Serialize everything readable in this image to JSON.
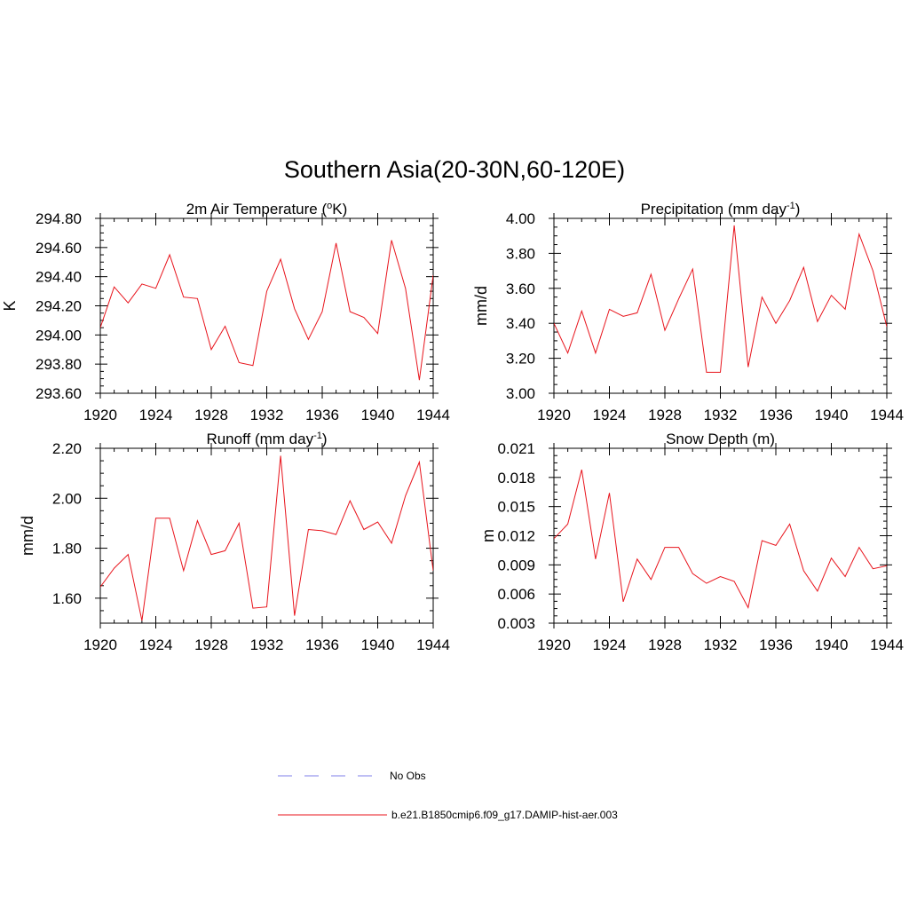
{
  "figure_title": "Southern Asia(20-30N,60-120E)",
  "colors": {
    "model_line": "#e8141c",
    "obs_line": "#9999ee",
    "axis": "#000000"
  },
  "legend": {
    "items": [
      {
        "label": "No Obs",
        "style": "dashed",
        "color": "#9999ee"
      },
      {
        "label": "b.e21.B1850cmip6.f09_g17.DAMIP-hist-aer.003",
        "style": "solid",
        "color": "#e8141c"
      }
    ]
  },
  "chart_data": [
    {
      "type": "line",
      "title": "2m Air Temperature (",
      "title_super": "o",
      "title_suffix": "K)",
      "xlabel": "",
      "ylabel": "K",
      "xlim": [
        1920,
        1944
      ],
      "ylim": [
        293.6,
        294.8
      ],
      "xticks": [
        1920,
        1924,
        1928,
        1932,
        1936,
        1940,
        1944
      ],
      "yticks": [
        "293.60",
        "293.80",
        "294.00",
        "294.20",
        "294.40",
        "294.60",
        "294.80"
      ],
      "ytick_values": [
        293.6,
        293.8,
        294.0,
        294.2,
        294.4,
        294.6,
        294.8
      ],
      "x": [
        1920,
        1921,
        1922,
        1923,
        1924,
        1925,
        1926,
        1927,
        1928,
        1929,
        1930,
        1931,
        1932,
        1933,
        1934,
        1935,
        1936,
        1937,
        1938,
        1939,
        1940,
        1941,
        1942,
        1943,
        1944
      ],
      "series": [
        {
          "values": [
            294.05,
            294.33,
            294.22,
            294.35,
            294.32,
            294.55,
            294.26,
            294.25,
            293.9,
            294.06,
            293.81,
            293.79,
            294.3,
            294.52,
            294.18,
            293.97,
            294.16,
            294.63,
            294.16,
            294.12,
            294.01,
            294.65,
            294.32,
            293.69,
            294.41
          ]
        }
      ]
    },
    {
      "type": "line",
      "title": "Precipitation (mm day",
      "title_super": "-1",
      "title_suffix": ")",
      "xlabel": "",
      "ylabel": "mm/d",
      "xlim": [
        1920,
        1944
      ],
      "ylim": [
        3.0,
        4.0
      ],
      "xticks": [
        1920,
        1924,
        1928,
        1932,
        1936,
        1940,
        1944
      ],
      "yticks": [
        "3.00",
        "3.20",
        "3.40",
        "3.60",
        "3.80",
        "4.00"
      ],
      "ytick_values": [
        3.0,
        3.2,
        3.4,
        3.6,
        3.8,
        4.0
      ],
      "x": [
        1920,
        1921,
        1922,
        1923,
        1924,
        1925,
        1926,
        1927,
        1928,
        1929,
        1930,
        1931,
        1932,
        1933,
        1934,
        1935,
        1936,
        1937,
        1938,
        1939,
        1940,
        1941,
        1942,
        1943,
        1944
      ],
      "series": [
        {
          "values": [
            3.4,
            3.23,
            3.47,
            3.23,
            3.48,
            3.44,
            3.46,
            3.68,
            3.36,
            3.54,
            3.71,
            3.12,
            3.12,
            3.96,
            3.15,
            3.55,
            3.4,
            3.53,
            3.72,
            3.41,
            3.56,
            3.48,
            3.91,
            3.7,
            3.38
          ]
        }
      ]
    },
    {
      "type": "line",
      "title": "Runoff (mm day",
      "title_super": "-1",
      "title_suffix": ")",
      "xlabel": "",
      "ylabel": "mm/d",
      "xlim": [
        1920,
        1944
      ],
      "ylim": [
        1.5,
        2.2
      ],
      "xticks": [
        1920,
        1924,
        1928,
        1932,
        1936,
        1940,
        1944
      ],
      "yticks": [
        "1.60",
        "1.80",
        "2.00",
        "2.20"
      ],
      "ytick_values": [
        1.6,
        1.8,
        2.0,
        2.2
      ],
      "x": [
        1920,
        1921,
        1922,
        1923,
        1924,
        1925,
        1926,
        1927,
        1928,
        1929,
        1930,
        1931,
        1932,
        1933,
        1934,
        1935,
        1936,
        1937,
        1938,
        1939,
        1940,
        1941,
        1942,
        1943,
        1944
      ],
      "series": [
        {
          "values": [
            1.645,
            1.72,
            1.775,
            1.51,
            1.92,
            1.92,
            1.71,
            1.91,
            1.775,
            1.79,
            1.9,
            1.56,
            1.565,
            2.17,
            1.53,
            1.875,
            1.87,
            1.855,
            1.99,
            1.875,
            1.905,
            1.82,
            2.01,
            2.145,
            1.71
          ]
        }
      ]
    },
    {
      "type": "line",
      "title": "Snow Depth (m)",
      "title_super": "",
      "title_suffix": "",
      "xlabel": "",
      "ylabel": "m",
      "xlim": [
        1920,
        1944
      ],
      "ylim": [
        0.003,
        0.021
      ],
      "xticks": [
        1920,
        1924,
        1928,
        1932,
        1936,
        1940,
        1944
      ],
      "yticks": [
        "0.003",
        "0.006",
        "0.009",
        "0.012",
        "0.015",
        "0.018",
        "0.021"
      ],
      "ytick_values": [
        0.003,
        0.006,
        0.009,
        0.012,
        0.015,
        0.018,
        0.021
      ],
      "x": [
        1920,
        1921,
        1922,
        1923,
        1924,
        1925,
        1926,
        1927,
        1928,
        1929,
        1930,
        1931,
        1932,
        1933,
        1934,
        1935,
        1936,
        1937,
        1938,
        1939,
        1940,
        1941,
        1942,
        1943,
        1944
      ],
      "series": [
        {
          "values": [
            0.0117,
            0.0132,
            0.0188,
            0.0096,
            0.0164,
            0.0052,
            0.0096,
            0.0075,
            0.0108,
            0.0108,
            0.0081,
            0.0071,
            0.0078,
            0.0073,
            0.0046,
            0.0115,
            0.011,
            0.0132,
            0.0084,
            0.0063,
            0.0097,
            0.0078,
            0.0108,
            0.0086,
            0.0089
          ]
        }
      ]
    }
  ]
}
